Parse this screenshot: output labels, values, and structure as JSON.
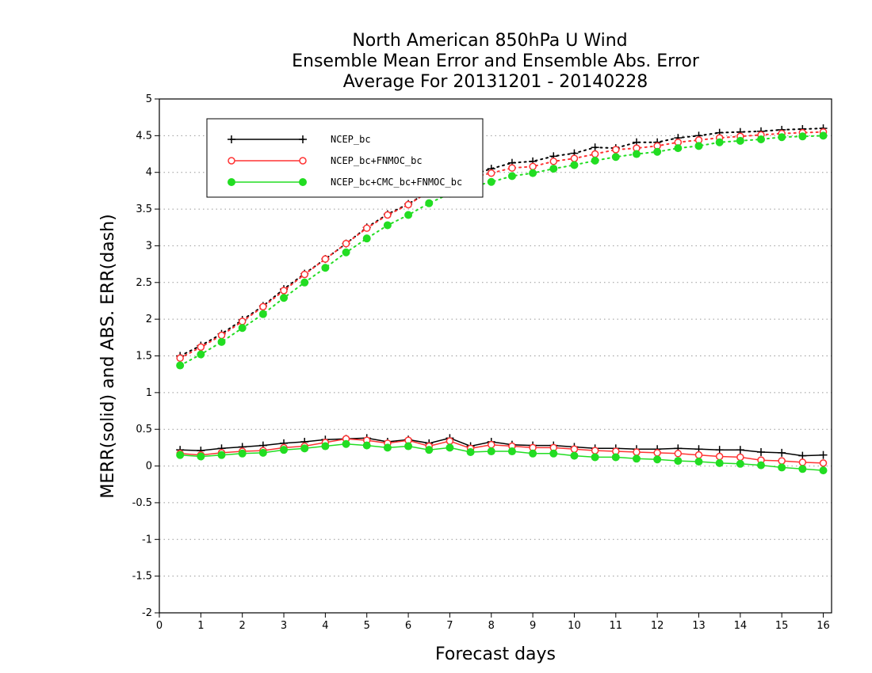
{
  "chart_data": {
    "type": "line",
    "title": [
      "North American 850hPa U Wind",
      "Ensemble Mean Error and Ensemble Abs. Error",
      "Average For 20131201 - 20140228"
    ],
    "xlabel": "Forecast days",
    "ylabel": "MERR(solid) and ABS. ERR(dash)",
    "xlim": [
      0,
      16.2
    ],
    "ylim": [
      -2,
      5
    ],
    "xticks": [
      "0",
      "1",
      "2",
      "3",
      "4",
      "5",
      "6",
      "7",
      "8",
      "9",
      "10",
      "11",
      "12",
      "13",
      "14",
      "15",
      "16"
    ],
    "yticks": [
      "-2",
      "-1.5",
      "-1",
      "-0.5",
      "0",
      "0.5",
      "1",
      "1.5",
      "2",
      "2.5",
      "3",
      "3.5",
      "4",
      "4.5",
      "5"
    ],
    "grid": "horizontal dotted",
    "legend_placement": "top-left",
    "x": [
      0.5,
      1,
      1.5,
      2,
      2.5,
      3,
      3.5,
      4,
      4.5,
      5,
      5.5,
      6,
      6.5,
      7,
      7.5,
      8,
      8.5,
      9,
      9.5,
      10,
      10.5,
      11,
      11.5,
      12,
      12.5,
      13,
      13.5,
      14,
      14.5,
      15,
      15.5,
      16
    ],
    "series": [
      {
        "name": "NCEP_bc",
        "color": "#000000",
        "marker": "plus",
        "mean_error": [
          0.22,
          0.21,
          0.24,
          0.26,
          0.28,
          0.31,
          0.33,
          0.36,
          0.37,
          0.38,
          0.33,
          0.36,
          0.31,
          0.38,
          0.27,
          0.33,
          0.29,
          0.28,
          0.28,
          0.26,
          0.24,
          0.24,
          0.23,
          0.23,
          0.24,
          0.23,
          0.22,
          0.22,
          0.19,
          0.18,
          0.14,
          0.15
        ],
        "abs_error": [
          1.5,
          1.64,
          1.8,
          1.99,
          2.18,
          2.41,
          2.62,
          2.82,
          3.03,
          3.25,
          3.43,
          3.57,
          3.74,
          3.86,
          3.96,
          4.05,
          4.13,
          4.15,
          4.22,
          4.26,
          4.34,
          4.33,
          4.41,
          4.41,
          4.47,
          4.5,
          4.54,
          4.55,
          4.56,
          4.58,
          4.59,
          4.6
        ]
      },
      {
        "name": "NCEP_bc+FNMOC_bc",
        "color": "#ff3333",
        "marker": "open-circle",
        "mean_error": [
          0.17,
          0.15,
          0.18,
          0.2,
          0.21,
          0.25,
          0.27,
          0.32,
          0.37,
          0.35,
          0.31,
          0.35,
          0.27,
          0.34,
          0.24,
          0.29,
          0.27,
          0.25,
          0.25,
          0.23,
          0.21,
          0.2,
          0.19,
          0.18,
          0.17,
          0.15,
          0.13,
          0.12,
          0.08,
          0.07,
          0.05,
          0.04
        ],
        "abs_error": [
          1.47,
          1.62,
          1.78,
          1.97,
          2.17,
          2.39,
          2.61,
          2.82,
          3.03,
          3.24,
          3.42,
          3.56,
          3.74,
          3.84,
          3.93,
          3.99,
          4.06,
          4.08,
          4.15,
          4.19,
          4.25,
          4.31,
          4.33,
          4.36,
          4.41,
          4.44,
          4.47,
          4.49,
          4.51,
          4.53,
          4.54,
          4.55
        ]
      },
      {
        "name": "NCEP_bc+CMC_bc+FNMOC_bc",
        "color": "#22dd22",
        "marker": "filled-circle",
        "mean_error": [
          0.15,
          0.13,
          0.15,
          0.17,
          0.18,
          0.22,
          0.24,
          0.27,
          0.3,
          0.28,
          0.25,
          0.27,
          0.22,
          0.25,
          0.19,
          0.2,
          0.2,
          0.17,
          0.17,
          0.14,
          0.12,
          0.12,
          0.1,
          0.09,
          0.07,
          0.06,
          0.04,
          0.03,
          0.01,
          -0.02,
          -0.04,
          -0.06
        ],
        "abs_error": [
          1.37,
          1.52,
          1.69,
          1.88,
          2.07,
          2.29,
          2.5,
          2.7,
          2.91,
          3.1,
          3.28,
          3.42,
          3.58,
          3.71,
          3.8,
          3.87,
          3.95,
          3.99,
          4.05,
          4.1,
          4.16,
          4.21,
          4.25,
          4.28,
          4.33,
          4.36,
          4.41,
          4.43,
          4.45,
          4.48,
          4.49,
          4.5
        ]
      }
    ]
  }
}
